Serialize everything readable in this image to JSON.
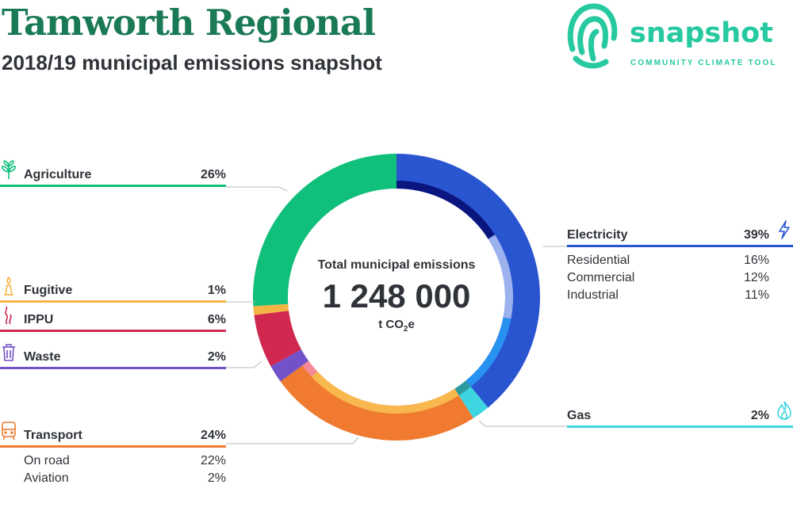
{
  "header": {
    "title": "Tamworth Regional",
    "subtitle": "2018/19 municipal emissions snapshot"
  },
  "logo": {
    "word": "snapshot",
    "tagline": "COMMUNITY CLIMATE TOOL",
    "color": "#26c9a0"
  },
  "chart_data": {
    "type": "pie",
    "style": "donut",
    "total_label": "Total municipal emissions",
    "total_value": "1 248 000",
    "total_unit": "t CO",
    "total_unit_sub": "2",
    "total_unit_suffix": "e",
    "categories": [
      {
        "name": "Electricity",
        "pct": 39,
        "pct_label": "39%",
        "color": "#2a55d0",
        "icon": "lightning-icon",
        "sub": [
          {
            "name": "Residential",
            "pct": 16,
            "pct_label": "16%",
            "color": "#0a1580"
          },
          {
            "name": "Commercial",
            "pct": 12,
            "pct_label": "12%",
            "color": "#9bb2ee"
          },
          {
            "name": "Industrial",
            "pct": 11,
            "pct_label": "11%",
            "color": "#2892f0"
          }
        ]
      },
      {
        "name": "Gas",
        "pct": 2,
        "pct_label": "2%",
        "color": "#3dd6e0",
        "icon": "flame-icon",
        "sub": [
          {
            "name": "",
            "pct": 2,
            "color": "#2a9aa0"
          }
        ]
      },
      {
        "name": "Transport",
        "pct": 24,
        "pct_label": "24%",
        "color": "#ef7a30",
        "icon": "train-icon",
        "sub": [
          {
            "name": "On road",
            "pct": 22,
            "pct_label": "22%",
            "color": "#f8b84e"
          },
          {
            "name": "Aviation",
            "pct": 2,
            "pct_label": "2%",
            "color": "#f48a96"
          }
        ]
      },
      {
        "name": "Waste",
        "pct": 2,
        "pct_label": "2%",
        "color": "#7252c8",
        "icon": "bin-icon",
        "sub": []
      },
      {
        "name": "IPPU",
        "pct": 6,
        "pct_label": "6%",
        "color": "#d0284e",
        "icon": "factory-smoke-icon",
        "sub": []
      },
      {
        "name": "Fugitive",
        "pct": 1,
        "pct_label": "1%",
        "color": "#f5b545",
        "icon": "flare-icon",
        "sub": []
      },
      {
        "name": "Agriculture",
        "pct": 26,
        "pct_label": "26%",
        "color": "#0fbf7a",
        "icon": "sprout-icon",
        "sub": []
      }
    ]
  }
}
